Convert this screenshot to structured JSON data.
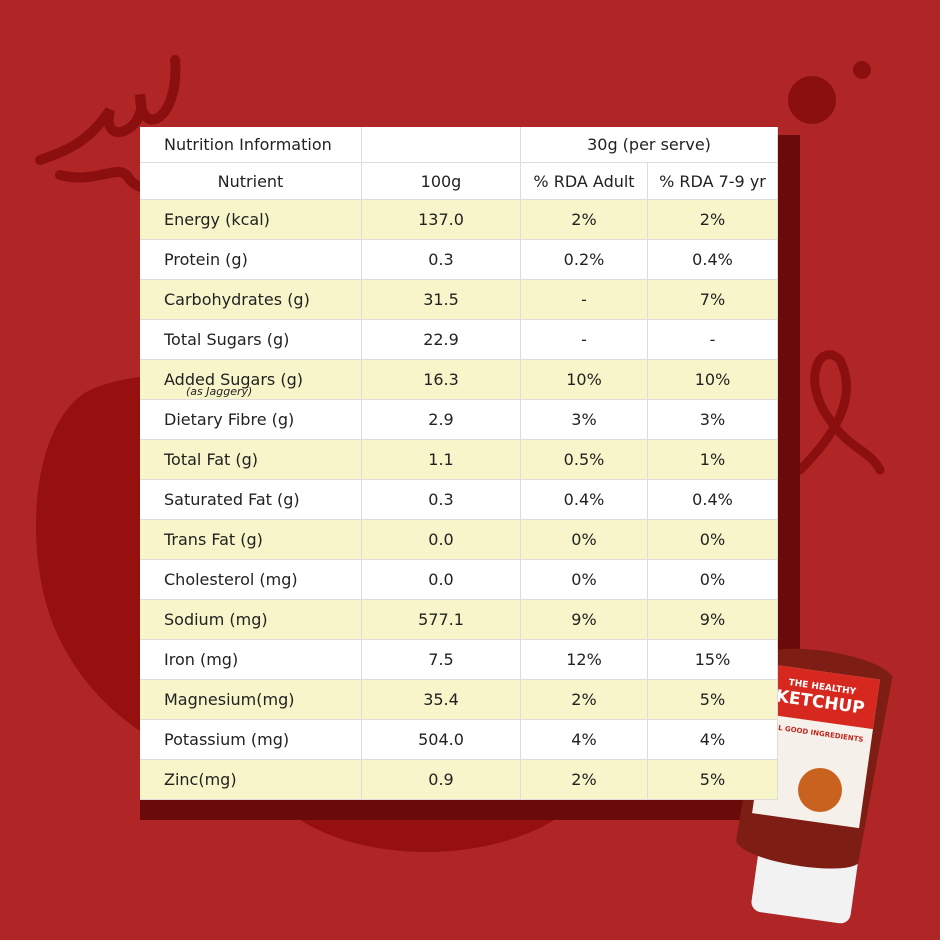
{
  "table": {
    "header": [
      "Nutrition Information",
      "30g (per serve)"
    ],
    "columns": [
      "Nutrient",
      "100g",
      "% RDA Adult",
      "% RDA 7-9 yr"
    ],
    "rows": [
      {
        "nutrient": "Energy (kcal)",
        "per100g": "137.0",
        "rda_adult": "2%",
        "rda_child": "2%"
      },
      {
        "nutrient": "Protein (g)",
        "per100g": "0.3",
        "rda_adult": "0.2%",
        "rda_child": "0.4%"
      },
      {
        "nutrient": "Carbohydrates (g)",
        "per100g": "31.5",
        "rda_adult": "-",
        "rda_child": "7%"
      },
      {
        "nutrient": "Total Sugars (g)",
        "per100g": "22.9",
        "rda_adult": "-",
        "rda_child": "-"
      },
      {
        "nutrient": "Added Sugars (g)",
        "note": "(as Jaggery)",
        "per100g": "16.3",
        "rda_adult": "10%",
        "rda_child": "10%"
      },
      {
        "nutrient": "Dietary Fibre (g)",
        "per100g": "2.9",
        "rda_adult": "3%",
        "rda_child": "3%"
      },
      {
        "nutrient": "Total Fat (g)",
        "per100g": "1.1",
        "rda_adult": "0.5%",
        "rda_child": "1%"
      },
      {
        "nutrient": "Saturated Fat (g)",
        "per100g": "0.3",
        "rda_adult": "0.4%",
        "rda_child": "0.4%"
      },
      {
        "nutrient": "Trans Fat (g)",
        "per100g": "0.0",
        "rda_adult": "0%",
        "rda_child": "0%"
      },
      {
        "nutrient": "Cholesterol (mg)",
        "per100g": "0.0",
        "rda_adult": "0%",
        "rda_child": "0%"
      },
      {
        "nutrient": "Sodium (mg)",
        "per100g": "577.1",
        "rda_adult": "9%",
        "rda_child": "9%"
      },
      {
        "nutrient": "Iron (mg)",
        "per100g": "7.5",
        "rda_adult": "12%",
        "rda_child": "15%"
      },
      {
        "nutrient": "Magnesium(mg)",
        "per100g": "35.4",
        "rda_adult": "2%",
        "rda_child": "5%"
      },
      {
        "nutrient": "Potassium (mg)",
        "per100g": "504.0",
        "rda_adult": "4%",
        "rda_child": "4%"
      },
      {
        "nutrient": "Zinc(mg)",
        "per100g": "0.9",
        "rda_adult": "2%",
        "rda_child": "5%"
      }
    ]
  },
  "product": {
    "line1": "THE HEALTHY",
    "line2": "KETCHUP",
    "tagline": "ALL GOOD INGREDIENTS"
  }
}
